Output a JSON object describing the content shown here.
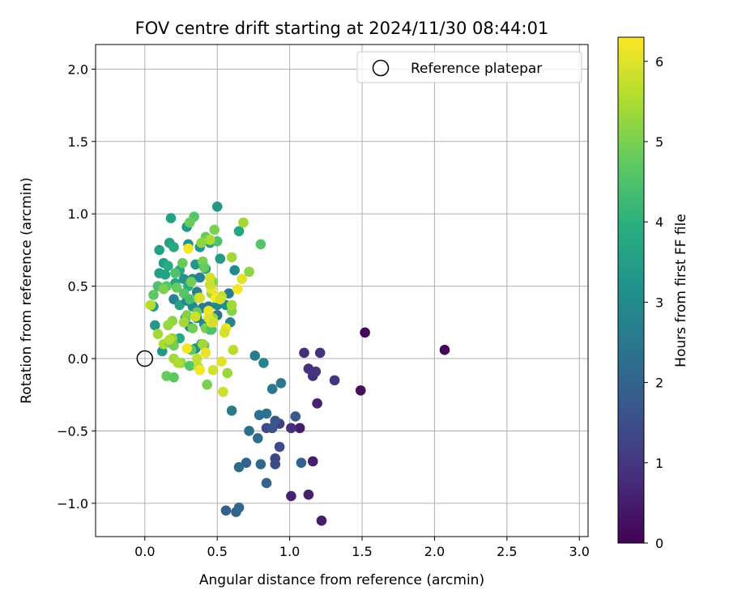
{
  "chart_data": {
    "type": "scatter",
    "title": "FOV centre drift starting at 2024/11/30 08:44:01",
    "xlabel": "Angular distance from reference (arcmin)",
    "ylabel": "Rotation from reference (arcmin)",
    "xlim": [
      -0.34,
      3.06
    ],
    "ylim": [
      -1.23,
      2.17
    ],
    "xticks": [
      0.0,
      0.5,
      1.0,
      1.5,
      2.0,
      2.5,
      3.0
    ],
    "xtick_labels": [
      "0.0",
      "0.5",
      "1.0",
      "1.5",
      "2.0",
      "2.5",
      "3.0"
    ],
    "yticks": [
      -1.0,
      -0.5,
      0.0,
      0.5,
      1.0,
      1.5,
      2.0
    ],
    "ytick_labels": [
      "−1.0",
      "−0.5",
      "0.0",
      "0.5",
      "1.0",
      "1.5",
      "2.0"
    ],
    "grid": true,
    "legend": {
      "position": "top-right",
      "entries": [
        {
          "label": "Reference platepar",
          "marker": "open-circle"
        }
      ]
    },
    "reference_point": {
      "x": 0.0,
      "y": 0.0
    },
    "colorbar": {
      "label": "Hours from first FF file",
      "colormap": "viridis",
      "range": [
        0,
        6.3
      ],
      "ticks": [
        0,
        1,
        2,
        3,
        4,
        5,
        6
      ],
      "tick_labels": [
        "0",
        "1",
        "2",
        "3",
        "4",
        "5",
        "6"
      ]
    },
    "points": [
      {
        "x": 2.07,
        "y": 0.06,
        "c": 0.05
      },
      {
        "x": 1.52,
        "y": 0.18,
        "c": 0.15
      },
      {
        "x": 1.49,
        "y": -0.22,
        "c": 0.25
      },
      {
        "x": 1.22,
        "y": -1.12,
        "c": 0.5
      },
      {
        "x": 1.13,
        "y": -0.94,
        "c": 0.55
      },
      {
        "x": 1.01,
        "y": -0.95,
        "c": 0.6
      },
      {
        "x": 1.16,
        "y": -0.71,
        "c": 0.55
      },
      {
        "x": 1.19,
        "y": -0.31,
        "c": 0.6
      },
      {
        "x": 1.07,
        "y": -0.48,
        "c": 0.5
      },
      {
        "x": 1.31,
        "y": -0.15,
        "c": 1.0
      },
      {
        "x": 1.21,
        "y": 0.04,
        "c": 0.9
      },
      {
        "x": 1.1,
        "y": 0.04,
        "c": 0.8
      },
      {
        "x": 1.13,
        "y": -0.07,
        "c": 0.9
      },
      {
        "x": 1.16,
        "y": -0.12,
        "c": 0.85
      },
      {
        "x": 1.18,
        "y": -0.09,
        "c": 0.95
      },
      {
        "x": 1.01,
        "y": -0.48,
        "c": 0.8
      },
      {
        "x": 0.93,
        "y": -0.45,
        "c": 1.2
      },
      {
        "x": 0.9,
        "y": -0.69,
        "c": 1.3
      },
      {
        "x": 0.9,
        "y": -0.73,
        "c": 1.4
      },
      {
        "x": 0.93,
        "y": -0.61,
        "c": 1.5
      },
      {
        "x": 0.84,
        "y": -0.48,
        "c": 1.4
      },
      {
        "x": 0.88,
        "y": -0.48,
        "c": 1.6
      },
      {
        "x": 0.9,
        "y": -0.43,
        "c": 1.7
      },
      {
        "x": 1.04,
        "y": -0.4,
        "c": 1.8
      },
      {
        "x": 1.08,
        "y": -0.72,
        "c": 2.0
      },
      {
        "x": 0.8,
        "y": -0.73,
        "c": 2.1
      },
      {
        "x": 0.7,
        "y": -0.72,
        "c": 2.0
      },
      {
        "x": 0.65,
        "y": -0.75,
        "c": 2.2
      },
      {
        "x": 0.84,
        "y": -0.86,
        "c": 2.0
      },
      {
        "x": 0.56,
        "y": -1.05,
        "c": 1.9
      },
      {
        "x": 0.63,
        "y": -1.06,
        "c": 2.0
      },
      {
        "x": 0.65,
        "y": -1.03,
        "c": 2.1
      },
      {
        "x": 0.72,
        "y": -0.5,
        "c": 2.3
      },
      {
        "x": 0.78,
        "y": -0.55,
        "c": 2.2
      },
      {
        "x": 0.79,
        "y": -0.39,
        "c": 2.3
      },
      {
        "x": 0.84,
        "y": -0.38,
        "c": 2.4
      },
      {
        "x": 0.88,
        "y": -0.21,
        "c": 2.5
      },
      {
        "x": 0.94,
        "y": -0.17,
        "c": 2.5
      },
      {
        "x": 0.6,
        "y": -0.36,
        "c": 2.6
      },
      {
        "x": 0.76,
        "y": 0.02,
        "c": 2.7
      },
      {
        "x": 0.82,
        "y": -0.03,
        "c": 2.8
      },
      {
        "x": 0.5,
        "y": 1.05,
        "c": 3.3
      },
      {
        "x": 0.18,
        "y": 0.97,
        "c": 3.6
      },
      {
        "x": 0.29,
        "y": 0.91,
        "c": 3.4
      },
      {
        "x": 0.65,
        "y": 0.88,
        "c": 3.7
      },
      {
        "x": 0.45,
        "y": 0.8,
        "c": 3.5
      },
      {
        "x": 0.17,
        "y": 0.8,
        "c": 3.6
      },
      {
        "x": 0.2,
        "y": 0.77,
        "c": 3.8
      },
      {
        "x": 0.1,
        "y": 0.75,
        "c": 3.6
      },
      {
        "x": 0.3,
        "y": 0.79,
        "c": 3.2
      },
      {
        "x": 0.38,
        "y": 0.77,
        "c": 3.3
      },
      {
        "x": 0.52,
        "y": 0.69,
        "c": 3.4
      },
      {
        "x": 0.13,
        "y": 0.66,
        "c": 3.5
      },
      {
        "x": 0.16,
        "y": 0.64,
        "c": 3.9
      },
      {
        "x": 0.24,
        "y": 0.61,
        "c": 3.7
      },
      {
        "x": 0.35,
        "y": 0.65,
        "c": 3.3
      },
      {
        "x": 0.42,
        "y": 0.62,
        "c": 3.4
      },
      {
        "x": 0.62,
        "y": 0.61,
        "c": 3.0
      },
      {
        "x": 0.1,
        "y": 0.59,
        "c": 3.5
      },
      {
        "x": 0.14,
        "y": 0.58,
        "c": 3.6
      },
      {
        "x": 0.27,
        "y": 0.55,
        "c": 3.2
      },
      {
        "x": 0.33,
        "y": 0.55,
        "c": 3.0
      },
      {
        "x": 0.38,
        "y": 0.56,
        "c": 2.8
      },
      {
        "x": 0.21,
        "y": 0.52,
        "c": 3.7
      },
      {
        "x": 0.3,
        "y": 0.5,
        "c": 3.9
      },
      {
        "x": 0.36,
        "y": 0.46,
        "c": 2.7
      },
      {
        "x": 0.58,
        "y": 0.45,
        "c": 2.6
      },
      {
        "x": 0.06,
        "y": 0.36,
        "c": 3.5
      },
      {
        "x": 0.2,
        "y": 0.41,
        "c": 2.8
      },
      {
        "x": 0.24,
        "y": 0.37,
        "c": 3.6
      },
      {
        "x": 0.29,
        "y": 0.4,
        "c": 2.9
      },
      {
        "x": 0.33,
        "y": 0.36,
        "c": 3.0
      },
      {
        "x": 0.4,
        "y": 0.35,
        "c": 2.5
      },
      {
        "x": 0.44,
        "y": 0.36,
        "c": 2.6
      },
      {
        "x": 0.5,
        "y": 0.37,
        "c": 2.9
      },
      {
        "x": 0.56,
        "y": 0.37,
        "c": 3.1
      },
      {
        "x": 0.36,
        "y": 0.28,
        "c": 2.6
      },
      {
        "x": 0.5,
        "y": 0.3,
        "c": 2.4
      },
      {
        "x": 0.59,
        "y": 0.25,
        "c": 2.8
      },
      {
        "x": 0.07,
        "y": 0.23,
        "c": 3.3
      },
      {
        "x": 0.28,
        "y": 0.28,
        "c": 3.5
      },
      {
        "x": 0.31,
        "y": 0.22,
        "c": 2.7
      },
      {
        "x": 0.41,
        "y": 0.24,
        "c": 2.9
      },
      {
        "x": 0.45,
        "y": 0.2,
        "c": 3.1
      },
      {
        "x": 0.12,
        "y": 0.05,
        "c": 3.4
      },
      {
        "x": 0.35,
        "y": 0.07,
        "c": 3.0
      },
      {
        "x": 0.39,
        "y": 0.1,
        "c": 3.6
      },
      {
        "x": 0.24,
        "y": 0.14,
        "c": 3.8
      },
      {
        "x": 0.34,
        "y": 0.98,
        "c": 4.6
      },
      {
        "x": 0.31,
        "y": 0.94,
        "c": 4.8
      },
      {
        "x": 0.48,
        "y": 0.89,
        "c": 5.0
      },
      {
        "x": 0.68,
        "y": 0.94,
        "c": 5.4
      },
      {
        "x": 0.42,
        "y": 0.84,
        "c": 4.8
      },
      {
        "x": 0.5,
        "y": 0.81,
        "c": 4.5
      },
      {
        "x": 0.8,
        "y": 0.79,
        "c": 4.6
      },
      {
        "x": 0.39,
        "y": 0.8,
        "c": 5.2
      },
      {
        "x": 0.45,
        "y": 0.82,
        "c": 5.5
      },
      {
        "x": 0.21,
        "y": 0.59,
        "c": 4.5
      },
      {
        "x": 0.26,
        "y": 0.66,
        "c": 4.8
      },
      {
        "x": 0.4,
        "y": 0.67,
        "c": 5.0
      },
      {
        "x": 0.6,
        "y": 0.7,
        "c": 5.4
      },
      {
        "x": 0.72,
        "y": 0.6,
        "c": 5.2
      },
      {
        "x": 0.41,
        "y": 0.63,
        "c": 4.8
      },
      {
        "x": 0.32,
        "y": 0.53,
        "c": 4.9
      },
      {
        "x": 0.47,
        "y": 0.53,
        "c": 5.1
      },
      {
        "x": 0.15,
        "y": 0.5,
        "c": 4.6
      },
      {
        "x": 0.09,
        "y": 0.5,
        "c": 4.5
      },
      {
        "x": 0.06,
        "y": 0.44,
        "c": 4.7
      },
      {
        "x": 0.13,
        "y": 0.48,
        "c": 5.0
      },
      {
        "x": 0.22,
        "y": 0.49,
        "c": 4.8
      },
      {
        "x": 0.27,
        "y": 0.45,
        "c": 4.6
      },
      {
        "x": 0.31,
        "y": 0.41,
        "c": 4.4
      },
      {
        "x": 0.37,
        "y": 0.42,
        "c": 5.2
      },
      {
        "x": 0.46,
        "y": 0.45,
        "c": 5.3
      },
      {
        "x": 0.53,
        "y": 0.43,
        "c": 5.6
      },
      {
        "x": 0.6,
        "y": 0.33,
        "c": 5.1
      },
      {
        "x": 0.6,
        "y": 0.37,
        "c": 5.4
      },
      {
        "x": 0.47,
        "y": 0.28,
        "c": 5.3
      },
      {
        "x": 0.36,
        "y": 0.32,
        "c": 4.8
      },
      {
        "x": 0.29,
        "y": 0.3,
        "c": 5.1
      },
      {
        "x": 0.19,
        "y": 0.26,
        "c": 5.2
      },
      {
        "x": 0.16,
        "y": 0.23,
        "c": 5.3
      },
      {
        "x": 0.09,
        "y": 0.17,
        "c": 5.4
      },
      {
        "x": 0.19,
        "y": 0.14,
        "c": 5.2
      },
      {
        "x": 0.13,
        "y": 0.1,
        "c": 5.5
      },
      {
        "x": 0.17,
        "y": 0.11,
        "c": 5.1
      },
      {
        "x": 0.2,
        "y": 0.09,
        "c": 4.9
      },
      {
        "x": 0.04,
        "y": 0.37,
        "c": 5.6
      },
      {
        "x": 0.27,
        "y": 0.25,
        "c": 5.4
      },
      {
        "x": 0.33,
        "y": 0.21,
        "c": 4.9
      },
      {
        "x": 0.42,
        "y": 0.21,
        "c": 5.0
      },
      {
        "x": 0.46,
        "y": 0.2,
        "c": 4.5
      },
      {
        "x": 0.32,
        "y": 0.06,
        "c": 4.7
      },
      {
        "x": 0.41,
        "y": 0.09,
        "c": 4.5
      },
      {
        "x": 0.4,
        "y": 0.1,
        "c": 5.4
      },
      {
        "x": 0.17,
        "y": 0.13,
        "c": 5.6
      },
      {
        "x": 0.2,
        "y": 0.0,
        "c": 5.4
      },
      {
        "x": 0.25,
        "y": -0.03,
        "c": 5.2
      },
      {
        "x": 0.31,
        "y": -0.05,
        "c": 4.6
      },
      {
        "x": 0.37,
        "y": -0.06,
        "c": 5.7
      },
      {
        "x": 0.15,
        "y": -0.12,
        "c": 4.8
      },
      {
        "x": 0.2,
        "y": -0.13,
        "c": 4.7
      },
      {
        "x": 0.43,
        "y": -0.18,
        "c": 5.0
      },
      {
        "x": 0.61,
        "y": 0.06,
        "c": 5.6
      },
      {
        "x": 0.57,
        "y": -0.1,
        "c": 5.3
      },
      {
        "x": 0.23,
        "y": -0.03,
        "c": 5.5
      },
      {
        "x": 0.3,
        "y": 0.76,
        "c": 6.2
      },
      {
        "x": 0.67,
        "y": 0.55,
        "c": 6.0
      },
      {
        "x": 0.45,
        "y": 0.56,
        "c": 5.9
      },
      {
        "x": 0.46,
        "y": 0.48,
        "c": 6.1
      },
      {
        "x": 0.45,
        "y": 0.51,
        "c": 5.8
      },
      {
        "x": 0.64,
        "y": 0.48,
        "c": 6.2
      },
      {
        "x": 0.49,
        "y": 0.42,
        "c": 6.3
      },
      {
        "x": 0.52,
        "y": 0.41,
        "c": 5.9
      },
      {
        "x": 0.38,
        "y": 0.42,
        "c": 5.9
      },
      {
        "x": 0.44,
        "y": 0.33,
        "c": 6.1
      },
      {
        "x": 0.44,
        "y": 0.28,
        "c": 6.0
      },
      {
        "x": 0.46,
        "y": 0.25,
        "c": 6.2
      },
      {
        "x": 0.35,
        "y": 0.29,
        "c": 5.8
      },
      {
        "x": 0.56,
        "y": 0.21,
        "c": 6.1
      },
      {
        "x": 0.55,
        "y": 0.18,
        "c": 5.9
      },
      {
        "x": 0.29,
        "y": 0.07,
        "c": 6.2
      },
      {
        "x": 0.42,
        "y": 0.04,
        "c": 6.1
      },
      {
        "x": 0.47,
        "y": 0.25,
        "c": 5.9
      },
      {
        "x": 0.53,
        "y": -0.02,
        "c": 6.0
      },
      {
        "x": 0.38,
        "y": -0.08,
        "c": 6.2
      },
      {
        "x": 0.47,
        "y": -0.08,
        "c": 5.9
      },
      {
        "x": 0.54,
        "y": -0.23,
        "c": 5.8
      },
      {
        "x": 0.36,
        "y": 0.0,
        "c": 5.7
      }
    ]
  }
}
